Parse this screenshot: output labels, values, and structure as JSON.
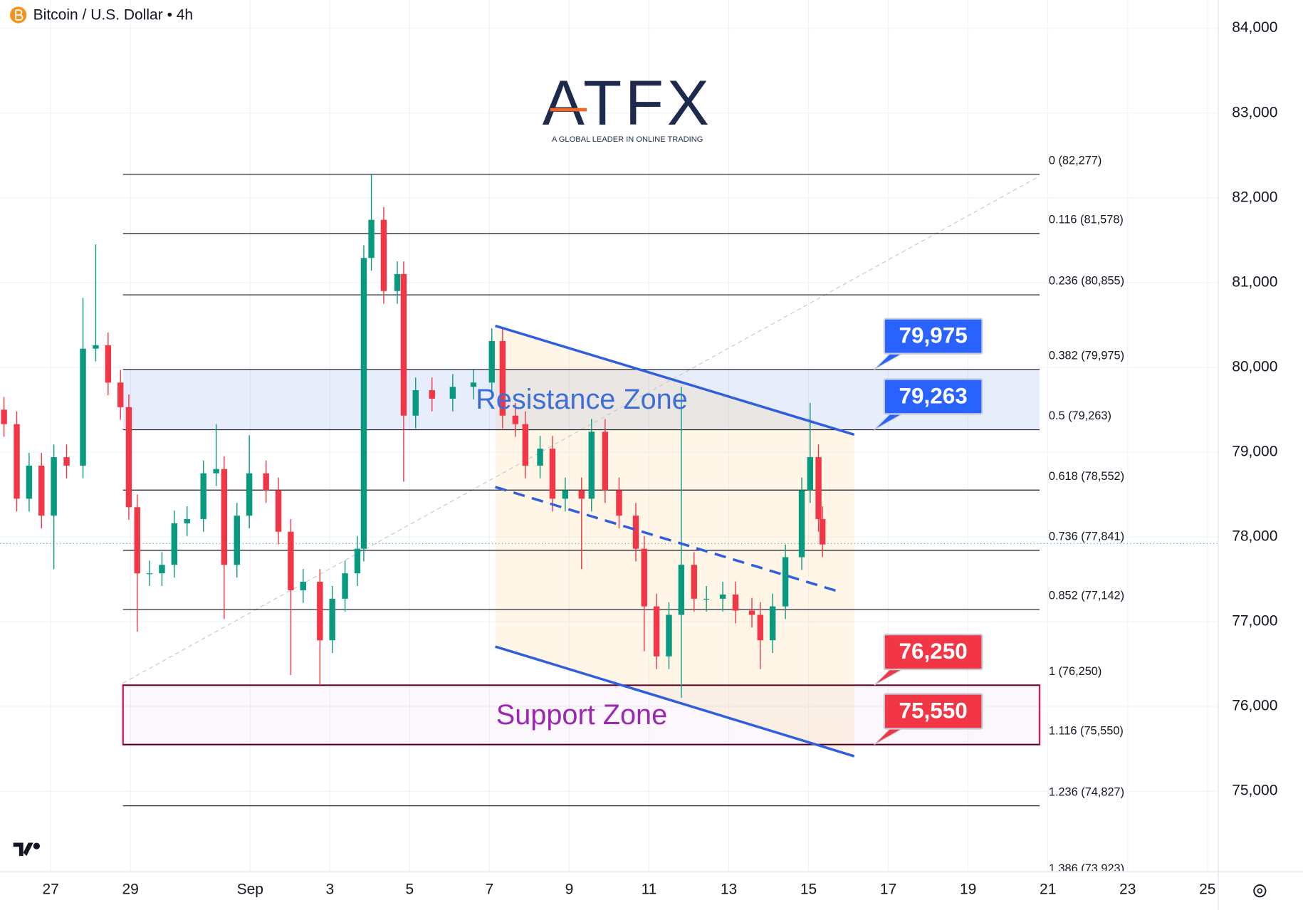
{
  "chart_data": {
    "type": "candlestick",
    "title": "Bitcoin / U.S. Dollar • 4h",
    "logo": {
      "name": "ATFX",
      "tagline": "A GLOBAL LEADER IN ONLINE TRADING"
    },
    "up_color": "#089981",
    "down_color": "#f23645",
    "xlim": [
      25.73,
      56.25
    ],
    "ylim": [
      74059,
      84333
    ],
    "xticks": [
      27,
      29,
      {
        "value": 32,
        "label": "Sep"
      },
      {
        "value": 34,
        "label": "3"
      },
      {
        "value": 36,
        "label": "5"
      },
      {
        "value": 38,
        "label": "7"
      },
      {
        "value": 40,
        "label": "9"
      },
      {
        "value": 42,
        "label": "11"
      },
      {
        "value": 44,
        "label": "13"
      },
      {
        "value": 46,
        "label": "15"
      },
      {
        "value": 48,
        "label": "17"
      },
      {
        "value": 50,
        "label": "19"
      },
      {
        "value": 52,
        "label": "21"
      },
      {
        "value": 54,
        "label": "23"
      },
      {
        "value": 56,
        "label": "25"
      }
    ],
    "yticks": [
      {
        "value": 75000,
        "label": "75,000"
      },
      {
        "value": 76000,
        "label": "76,000"
      },
      {
        "value": 77000,
        "label": "77,000"
      },
      {
        "value": 78000,
        "label": "78,000"
      },
      {
        "value": 79000,
        "label": "79,000"
      },
      {
        "value": 80000,
        "label": "80,000"
      },
      {
        "value": 81000,
        "label": "81,000"
      },
      {
        "value": 82000,
        "label": "82,000"
      },
      {
        "value": 83000,
        "label": "83,000"
      },
      {
        "value": 84000,
        "label": "84,000"
      }
    ],
    "fib_levels": [
      {
        "value": 82277,
        "label": "0 (82,277)"
      },
      {
        "value": 81578,
        "label": "0.116 (81,578)"
      },
      {
        "value": 80855,
        "label": "0.236 (80,855)"
      },
      {
        "value": 79975,
        "label": "0.382 (79,975)"
      },
      {
        "value": 79263,
        "label": "0.5 (79,263)"
      },
      {
        "value": 78552,
        "label": "0.618 (78,552)"
      },
      {
        "value": 77841,
        "label": "0.736 (77,841)"
      },
      {
        "value": 77142,
        "label": "0.852 (77,142)"
      },
      {
        "value": 76250,
        "label": "1 (76,250)"
      },
      {
        "value": 75550,
        "label": "1.116 (75,550)"
      },
      {
        "value": 74827,
        "label": "1.236 (74,827)"
      },
      {
        "value": 73923,
        "label": "1.386 (73,923)"
      }
    ],
    "zones": [
      {
        "label": "Resistance Zone",
        "top": 79975,
        "bottom": 79263,
        "top_label": "79,975",
        "bottom_label": "79,263",
        "color": "#3d6fd6",
        "tag_color": "#2962ff"
      },
      {
        "label": "Support Zone",
        "top": 76250,
        "bottom": 75550,
        "top_label": "76,250",
        "bottom_label": "75,550",
        "color": "#9c27b0",
        "tag_color": "#f23645"
      }
    ],
    "x": [
      25.83,
      26.15,
      26.46,
      26.77,
      27.08,
      27.4,
      27.81,
      28.13,
      28.44,
      28.75,
      28.96,
      29.17,
      29.48,
      29.79,
      30.1,
      30.42,
      30.83,
      31.15,
      31.35,
      31.67,
      31.98,
      32.4,
      32.71,
      33.02,
      33.33,
      33.75,
      34.06,
      34.38,
      34.69,
      34.85,
      35.04,
      35.35,
      35.69,
      35.85,
      36.15,
      36.56,
      37.08,
      37.6,
      38.06,
      38.33,
      38.65,
      38.9,
      39.27,
      39.58,
      39.9,
      40.31,
      40.56,
      40.9,
      41.25,
      41.67,
      41.88,
      42.19,
      42.5,
      42.81,
      43.13,
      43.44,
      43.85,
      44.17,
      44.58,
      44.79,
      45.1,
      45.42,
      45.83,
      46.04,
      46.25,
      46.35
    ],
    "open": [
      79500,
      79330,
      78450,
      78840,
      78250,
      78940,
      78840,
      80220,
      80260,
      79820,
      79530,
      78350,
      77570,
      77570,
      77670,
      78160,
      78210,
      78750,
      78800,
      77670,
      78250,
      78750,
      78550,
      78060,
      77370,
      77470,
      76780,
      77270,
      77570,
      77860,
      81290,
      81740,
      80900,
      81100,
      79430,
      79730,
      79630,
      79770,
      79820,
      80310,
      79430,
      79330,
      78840,
      79040,
      78450,
      78550,
      78450,
      79240,
      78550,
      78250,
      77860,
      77180,
      76590,
      77080,
      77670,
      77270,
      77270,
      77320,
      77130,
      77080,
      76780,
      77180,
      77760,
      78550,
      78940,
      78210
    ],
    "high": [
      79650,
      79480,
      78990,
      78990,
      79090,
      79090,
      80820,
      81450,
      80410,
      79970,
      79680,
      78500,
      77720,
      77820,
      78310,
      78360,
      78900,
      79330,
      78950,
      78400,
      79200,
      78900,
      78700,
      78210,
      77620,
      77620,
      77420,
      77720,
      78010,
      81440,
      82277,
      81890,
      81250,
      81250,
      79880,
      79880,
      79920,
      79970,
      80460,
      80460,
      79580,
      79480,
      79190,
      79190,
      78700,
      78700,
      79390,
      79390,
      78700,
      78400,
      78010,
      77330,
      77230,
      79770,
      77820,
      77420,
      77470,
      77470,
      77280,
      77230,
      77330,
      77910,
      78700,
      79580,
      79090,
      78360
    ],
    "low": [
      79180,
      78300,
      78300,
      78100,
      77620,
      78690,
      78690,
      80070,
      79670,
      79380,
      78200,
      76880,
      77420,
      77420,
      77520,
      78010,
      78060,
      78600,
      77030,
      77520,
      78100,
      78400,
      77910,
      76370,
      77220,
      76250,
      76630,
      77120,
      77420,
      77710,
      81140,
      80750,
      80750,
      78650,
      79280,
      79480,
      79480,
      79620,
      79670,
      79280,
      79180,
      78690,
      78690,
      78300,
      78300,
      77620,
      78300,
      78400,
      78100,
      77710,
      76650,
      76440,
      76440,
      76100,
      77120,
      77120,
      77120,
      76980,
      76930,
      76440,
      76630,
      77030,
      77610,
      78400,
      78060,
      77760
    ],
    "close": [
      79330,
      78450,
      78840,
      78250,
      78940,
      78840,
      80220,
      80260,
      79820,
      79530,
      78350,
      77570,
      77570,
      77670,
      78160,
      78210,
      78750,
      78800,
      77670,
      78250,
      78750,
      78550,
      78060,
      77370,
      77470,
      76780,
      77270,
      77570,
      77860,
      81290,
      81740,
      80900,
      81100,
      79430,
      79730,
      79630,
      79770,
      79820,
      80310,
      79430,
      79330,
      78840,
      79040,
      78450,
      78550,
      78450,
      79240,
      78550,
      78250,
      77860,
      77180,
      76590,
      77080,
      77670,
      77270,
      77270,
      77320,
      77130,
      77080,
      76780,
      77180,
      77760,
      78550,
      78940,
      78210,
      77910
    ]
  }
}
